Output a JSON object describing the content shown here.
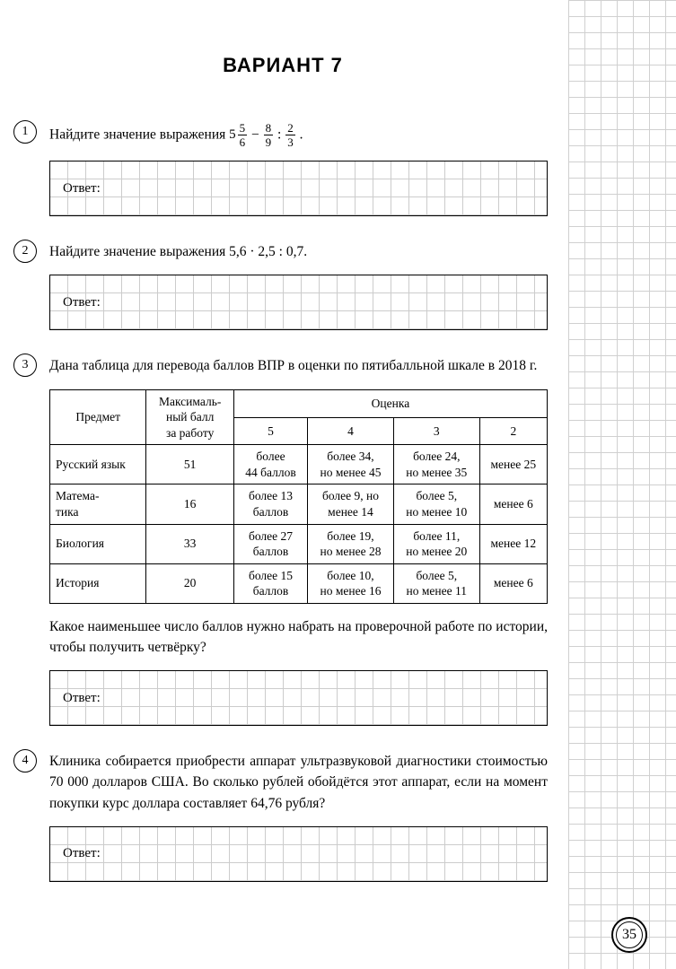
{
  "title": "ВАРИАНТ 7",
  "answer_label": "Ответ:",
  "page_number": "35",
  "tasks": {
    "t1": {
      "num": "1",
      "prefix": "Найдите значение выражения ",
      "frac1_whole": "5",
      "frac1_num": "5",
      "frac1_den": "6",
      "op1": " − ",
      "frac2_num": "8",
      "frac2_den": "9",
      "op2": " : ",
      "frac3_num": "2",
      "frac3_den": "3",
      "suffix": "."
    },
    "t2": {
      "num": "2",
      "text": "Найдите значение выражения 5,6 · 2,5 : 0,7."
    },
    "t3": {
      "num": "3",
      "intro": "Дана таблица для перевода баллов ВПР в оценки по пятибалльной шкале в 2018 г.",
      "after": "Какое наименьшее число баллов нужно набрать на проверочной работе по истории, чтобы получить четвёрку?",
      "headers": {
        "subject": "Предмет",
        "max": "Максималь-\nный балл\nза работу",
        "grade": "Оценка",
        "g5": "5",
        "g4": "4",
        "g3": "3",
        "g2": "2"
      },
      "rows": [
        {
          "subject": "Русский язык",
          "max": "51",
          "g5": "более\n44 баллов",
          "g4": "более 34,\nно менее 45",
          "g3": "более 24,\nно менее 35",
          "g2": "менее 25"
        },
        {
          "subject": "Матема-\nтика",
          "max": "16",
          "g5": "более 13\nбаллов",
          "g4": "более 9, но\nменее 14",
          "g3": "более 5,\nно менее 10",
          "g2": "менее 6"
        },
        {
          "subject": "Биология",
          "max": "33",
          "g5": "более 27\nбаллов",
          "g4": "более 19,\nно менее 28",
          "g3": "более 11,\nно менее 20",
          "g2": "менее 12"
        },
        {
          "subject": "История",
          "max": "20",
          "g5": "более 15\nбаллов",
          "g4": "более 10,\nно менее 16",
          "g3": "более 5,\nно менее 11",
          "g2": "менее 6"
        }
      ]
    },
    "t4": {
      "num": "4",
      "text": "Клиника собирается приобрести аппарат ультразвуковой диагностики стоимостью 70 000 долларов США. Во сколько рублей обойдётся этот аппарат, если на момент покупки курс доллара составляет 64,76 рубля?"
    }
  }
}
